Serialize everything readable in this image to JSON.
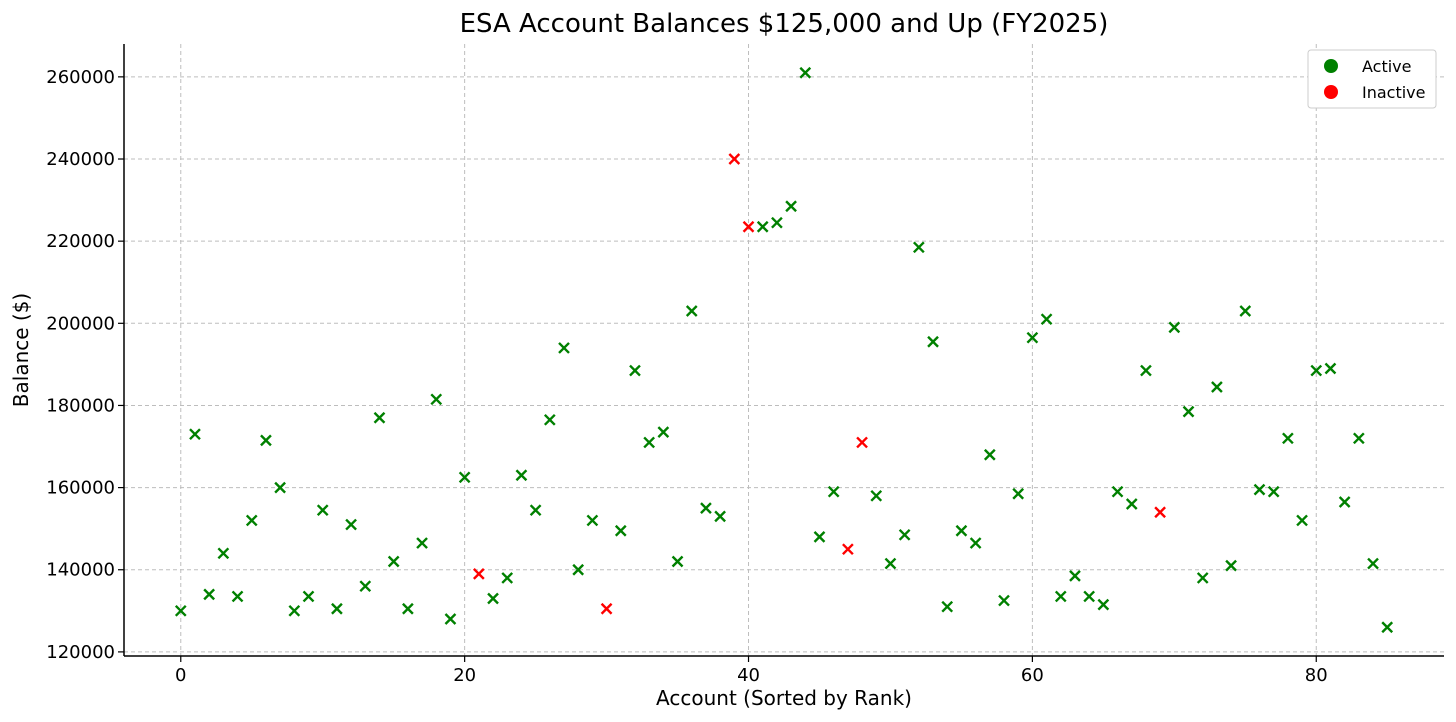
{
  "chart_data": {
    "type": "scatter",
    "title": "ESA Account Balances $125,000 and Up (FY2025)",
    "xlabel": "Account (Sorted by Rank)",
    "ylabel": "Balance ($)",
    "xlim": [
      -4,
      89
    ],
    "ylim": [
      119000,
      268000
    ],
    "xticks": [
      0,
      20,
      40,
      60,
      80
    ],
    "yticks": [
      120000,
      140000,
      160000,
      180000,
      200000,
      220000,
      240000,
      260000
    ],
    "grid": true,
    "legend_position": "top-right",
    "colors": {
      "Active": "#008000",
      "Inactive": "#ff0000"
    },
    "legend": [
      {
        "label": "Active",
        "color": "#008000"
      },
      {
        "label": "Inactive",
        "color": "#ff0000"
      }
    ],
    "points": [
      {
        "x": 0,
        "y": 130000,
        "status": "Active"
      },
      {
        "x": 1,
        "y": 173000,
        "status": "Active"
      },
      {
        "x": 2,
        "y": 134000,
        "status": "Active"
      },
      {
        "x": 3,
        "y": 144000,
        "status": "Active"
      },
      {
        "x": 4,
        "y": 133500,
        "status": "Active"
      },
      {
        "x": 5,
        "y": 152000,
        "status": "Active"
      },
      {
        "x": 6,
        "y": 171500,
        "status": "Active"
      },
      {
        "x": 7,
        "y": 160000,
        "status": "Active"
      },
      {
        "x": 8,
        "y": 130000,
        "status": "Active"
      },
      {
        "x": 9,
        "y": 133500,
        "status": "Active"
      },
      {
        "x": 10,
        "y": 154500,
        "status": "Active"
      },
      {
        "x": 11,
        "y": 130500,
        "status": "Active"
      },
      {
        "x": 12,
        "y": 151000,
        "status": "Active"
      },
      {
        "x": 13,
        "y": 136000,
        "status": "Active"
      },
      {
        "x": 14,
        "y": 177000,
        "status": "Active"
      },
      {
        "x": 15,
        "y": 142000,
        "status": "Active"
      },
      {
        "x": 16,
        "y": 130500,
        "status": "Active"
      },
      {
        "x": 17,
        "y": 146500,
        "status": "Active"
      },
      {
        "x": 18,
        "y": 181500,
        "status": "Active"
      },
      {
        "x": 19,
        "y": 128000,
        "status": "Active"
      },
      {
        "x": 20,
        "y": 162500,
        "status": "Active"
      },
      {
        "x": 21,
        "y": 139000,
        "status": "Inactive"
      },
      {
        "x": 22,
        "y": 133000,
        "status": "Active"
      },
      {
        "x": 23,
        "y": 138000,
        "status": "Active"
      },
      {
        "x": 24,
        "y": 163000,
        "status": "Active"
      },
      {
        "x": 25,
        "y": 154500,
        "status": "Active"
      },
      {
        "x": 26,
        "y": 176500,
        "status": "Active"
      },
      {
        "x": 27,
        "y": 194000,
        "status": "Active"
      },
      {
        "x": 28,
        "y": 140000,
        "status": "Active"
      },
      {
        "x": 29,
        "y": 152000,
        "status": "Active"
      },
      {
        "x": 30,
        "y": 130500,
        "status": "Inactive"
      },
      {
        "x": 31,
        "y": 149500,
        "status": "Active"
      },
      {
        "x": 32,
        "y": 188500,
        "status": "Active"
      },
      {
        "x": 33,
        "y": 171000,
        "status": "Active"
      },
      {
        "x": 34,
        "y": 173500,
        "status": "Active"
      },
      {
        "x": 35,
        "y": 142000,
        "status": "Active"
      },
      {
        "x": 36,
        "y": 203000,
        "status": "Active"
      },
      {
        "x": 37,
        "y": 155000,
        "status": "Active"
      },
      {
        "x": 38,
        "y": 153000,
        "status": "Active"
      },
      {
        "x": 39,
        "y": 240000,
        "status": "Inactive"
      },
      {
        "x": 40,
        "y": 223500,
        "status": "Inactive"
      },
      {
        "x": 41,
        "y": 223500,
        "status": "Active"
      },
      {
        "x": 42,
        "y": 224500,
        "status": "Active"
      },
      {
        "x": 43,
        "y": 228500,
        "status": "Active"
      },
      {
        "x": 44,
        "y": 261000,
        "status": "Active"
      },
      {
        "x": 45,
        "y": 148000,
        "status": "Active"
      },
      {
        "x": 46,
        "y": 159000,
        "status": "Active"
      },
      {
        "x": 47,
        "y": 145000,
        "status": "Inactive"
      },
      {
        "x": 48,
        "y": 171000,
        "status": "Inactive"
      },
      {
        "x": 49,
        "y": 158000,
        "status": "Active"
      },
      {
        "x": 50,
        "y": 141500,
        "status": "Active"
      },
      {
        "x": 51,
        "y": 148500,
        "status": "Active"
      },
      {
        "x": 52,
        "y": 218500,
        "status": "Active"
      },
      {
        "x": 53,
        "y": 195500,
        "status": "Active"
      },
      {
        "x": 54,
        "y": 131000,
        "status": "Active"
      },
      {
        "x": 55,
        "y": 149500,
        "status": "Active"
      },
      {
        "x": 56,
        "y": 146500,
        "status": "Active"
      },
      {
        "x": 57,
        "y": 168000,
        "status": "Active"
      },
      {
        "x": 58,
        "y": 132500,
        "status": "Active"
      },
      {
        "x": 59,
        "y": 158500,
        "status": "Active"
      },
      {
        "x": 60,
        "y": 196500,
        "status": "Active"
      },
      {
        "x": 61,
        "y": 201000,
        "status": "Active"
      },
      {
        "x": 62,
        "y": 133500,
        "status": "Active"
      },
      {
        "x": 63,
        "y": 138500,
        "status": "Active"
      },
      {
        "x": 64,
        "y": 133500,
        "status": "Active"
      },
      {
        "x": 65,
        "y": 131500,
        "status": "Active"
      },
      {
        "x": 66,
        "y": 159000,
        "status": "Active"
      },
      {
        "x": 67,
        "y": 156000,
        "status": "Active"
      },
      {
        "x": 68,
        "y": 188500,
        "status": "Active"
      },
      {
        "x": 69,
        "y": 154000,
        "status": "Inactive"
      },
      {
        "x": 70,
        "y": 199000,
        "status": "Active"
      },
      {
        "x": 71,
        "y": 178500,
        "status": "Active"
      },
      {
        "x": 72,
        "y": 138000,
        "status": "Active"
      },
      {
        "x": 73,
        "y": 184500,
        "status": "Active"
      },
      {
        "x": 74,
        "y": 141000,
        "status": "Active"
      },
      {
        "x": 75,
        "y": 203000,
        "status": "Active"
      },
      {
        "x": 76,
        "y": 159500,
        "status": "Active"
      },
      {
        "x": 77,
        "y": 159000,
        "status": "Active"
      },
      {
        "x": 78,
        "y": 172000,
        "status": "Active"
      },
      {
        "x": 79,
        "y": 152000,
        "status": "Active"
      },
      {
        "x": 80,
        "y": 188500,
        "status": "Active"
      },
      {
        "x": 81,
        "y": 189000,
        "status": "Active"
      },
      {
        "x": 82,
        "y": 156500,
        "status": "Active"
      },
      {
        "x": 83,
        "y": 172000,
        "status": "Active"
      },
      {
        "x": 84,
        "y": 141500,
        "status": "Active"
      },
      {
        "x": 85,
        "y": 126000,
        "status": "Active"
      }
    ]
  }
}
